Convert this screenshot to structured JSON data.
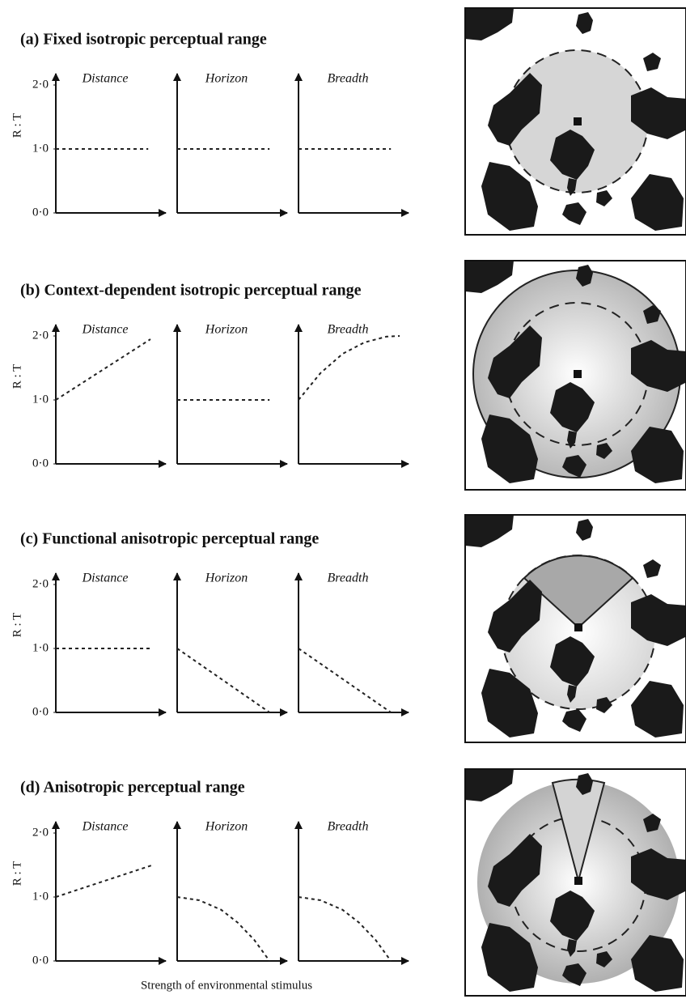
{
  "panel_titles": [
    "(a) Fixed isotropic perceptual range",
    "(b) Context-dependent isotropic perceptual range",
    "(c) Functional anisotropic perceptual range",
    "(d) Anisotropic perceptual range"
  ],
  "x_label": "Strength of environmental stimulus",
  "chart_data": [
    {
      "type": "line",
      "title": "Distance",
      "y_label": "R : T",
      "x": [
        0,
        0.84
      ],
      "values": [
        1,
        1
      ],
      "xlim": [
        0,
        1
      ],
      "ylim": [
        0,
        2
      ],
      "yticks": [
        {
          "value": 0,
          "label": "0·0"
        },
        {
          "value": 1,
          "label": "1·0"
        },
        {
          "value": 2,
          "label": "2·0"
        }
      ],
      "color": "#222222"
    },
    {
      "type": "line",
      "title": "Horizon",
      "x": [
        0,
        0.84
      ],
      "values": [
        1,
        1
      ],
      "xlim": [
        0,
        1
      ],
      "ylim": [
        0,
        2
      ],
      "color": "#222222"
    },
    {
      "type": "line",
      "title": "Breadth",
      "x": [
        0,
        0.84
      ],
      "values": [
        1,
        1
      ],
      "xlim": [
        0,
        1
      ],
      "ylim": [
        0,
        2
      ],
      "color": "#222222"
    },
    {
      "type": "line",
      "title": "Distance",
      "y_label": "R : T",
      "x": [
        0,
        0.86
      ],
      "values": [
        1,
        1.95
      ],
      "xlim": [
        0,
        1
      ],
      "ylim": [
        0,
        2
      ],
      "yticks": [
        {
          "value": 0,
          "label": "0·0"
        },
        {
          "value": 1,
          "label": "1·0"
        },
        {
          "value": 2,
          "label": "2·0"
        }
      ],
      "color": "#222222"
    },
    {
      "type": "line",
      "title": "Horizon",
      "x": [
        0,
        0.84
      ],
      "values": [
        1,
        1
      ],
      "xlim": [
        0,
        1
      ],
      "ylim": [
        0,
        2
      ],
      "color": "#222222"
    },
    {
      "type": "line",
      "title": "Breadth",
      "x": [
        0,
        0.2,
        0.4,
        0.6,
        0.8,
        0.92
      ],
      "values": [
        1,
        1.42,
        1.72,
        1.9,
        1.99,
        2.0
      ],
      "xlim": [
        0,
        1
      ],
      "ylim": [
        0,
        2
      ],
      "color": "#222222"
    },
    {
      "type": "line",
      "title": "Distance",
      "y_label": "R : T",
      "x": [
        0,
        0.88
      ],
      "values": [
        1,
        1
      ],
      "xlim": [
        0,
        1
      ],
      "ylim": [
        0,
        2
      ],
      "yticks": [
        {
          "value": 0,
          "label": "0·0"
        },
        {
          "value": 1,
          "label": "1·0"
        },
        {
          "value": 2,
          "label": "2·0"
        }
      ],
      "color": "#222222"
    },
    {
      "type": "line",
      "title": "Horizon",
      "x": [
        0,
        0.84
      ],
      "values": [
        1,
        0
      ],
      "xlim": [
        0,
        1
      ],
      "ylim": [
        0,
        2
      ],
      "color": "#222222"
    },
    {
      "type": "line",
      "title": "Breadth",
      "x": [
        0,
        0.84
      ],
      "values": [
        1,
        0
      ],
      "xlim": [
        0,
        1
      ],
      "ylim": [
        0,
        2
      ],
      "color": "#222222"
    },
    {
      "type": "line",
      "title": "Distance",
      "y_label": "R : T",
      "x": [
        0,
        0.88
      ],
      "values": [
        1,
        1.5
      ],
      "xlim": [
        0,
        1
      ],
      "ylim": [
        0,
        2
      ],
      "yticks": [
        {
          "value": 0,
          "label": "0·0"
        },
        {
          "value": 1,
          "label": "1·0"
        },
        {
          "value": 2,
          "label": "2·0"
        }
      ],
      "color": "#222222"
    },
    {
      "type": "line",
      "title": "Horizon",
      "x": [
        0,
        0.2,
        0.4,
        0.55,
        0.7,
        0.84
      ],
      "values": [
        1,
        0.95,
        0.8,
        0.6,
        0.33,
        0
      ],
      "xlim": [
        0,
        1
      ],
      "ylim": [
        0,
        2
      ],
      "color": "#222222"
    },
    {
      "type": "line",
      "title": "Breadth",
      "x": [
        0,
        0.2,
        0.4,
        0.55,
        0.7,
        0.84
      ],
      "values": [
        1,
        0.95,
        0.8,
        0.6,
        0.33,
        0
      ],
      "xlim": [
        0,
        1
      ],
      "ylim": [
        0,
        2
      ],
      "color": "#222222"
    }
  ]
}
